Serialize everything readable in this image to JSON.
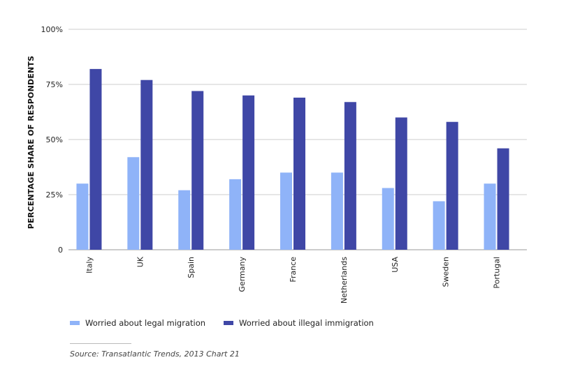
{
  "colors": {
    "legal": "#8fb3f8",
    "illegal": "#3f47a6",
    "grid": "#cccccc",
    "axis": "#999999"
  },
  "legend": {
    "legal": "Worried about legal migration",
    "illegal": "Worried about illegal immigration"
  },
  "source": "Source: Transatlantic Trends, 2013 Chart 21",
  "chart_data": {
    "type": "bar",
    "ylabel": "PERCENTAGE SHARE OF RESPONDENTS",
    "ylim": [
      0,
      100
    ],
    "yticks": [
      {
        "value": 0,
        "label": "0"
      },
      {
        "value": 25,
        "label": "25%"
      },
      {
        "value": 50,
        "label": "50%"
      },
      {
        "value": 75,
        "label": "75%"
      },
      {
        "value": 100,
        "label": "100%"
      }
    ],
    "grid": true,
    "legend_position": "bottom-left",
    "categories": [
      "Italy",
      "UK",
      "Spain",
      "Germany",
      "France",
      "Netherlands",
      "USA",
      "Sweden",
      "Portugal"
    ],
    "series": [
      {
        "name": "Worried about legal migration",
        "key": "legal",
        "values": [
          30,
          42,
          27,
          32,
          35,
          35,
          28,
          22,
          30
        ]
      },
      {
        "name": "Worried about illegal immigration",
        "key": "illegal",
        "values": [
          82,
          77,
          72,
          70,
          69,
          67,
          60,
          58,
          46
        ]
      }
    ]
  }
}
